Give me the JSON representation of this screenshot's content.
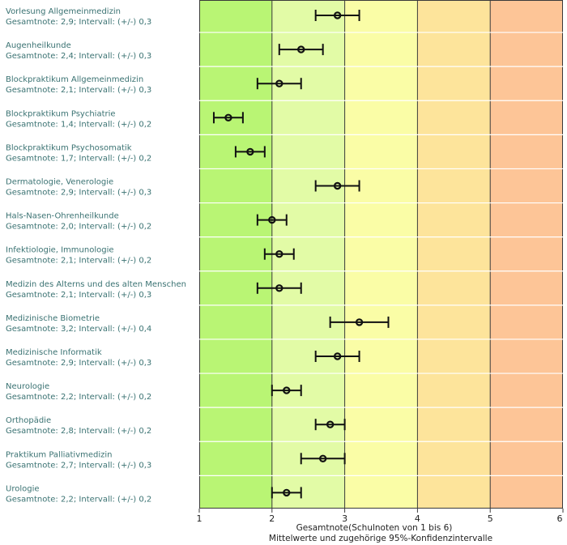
{
  "chart_data": {
    "type": "scatter",
    "orientation": "horizontal",
    "error_bars": true,
    "xlabel": "Gesamtnote(Schulnoten von 1 bis 6)",
    "xlabel2": "Mittelwerte und zugehörige 95%-Konfidenzintervalle",
    "xlim": [
      1,
      6
    ],
    "xticks": [
      "1",
      "2",
      "3",
      "4",
      "5",
      "6"
    ],
    "bands": [
      {
        "from": 1,
        "to": 2,
        "color": "#b9f574"
      },
      {
        "from": 2,
        "to": 3,
        "color": "#e2fba6"
      },
      {
        "from": 3,
        "to": 4,
        "color": "#fafda6"
      },
      {
        "from": 4,
        "to": 5,
        "color": "#fde49b"
      },
      {
        "from": 5,
        "to": 6,
        "color": "#fdc597"
      }
    ],
    "items": [
      {
        "name": "Vorlesung Allgemeinmedizin",
        "stat": "Gesamtnote: 2,9;  Intervall: (+/-) 0,3",
        "mean": 2.9,
        "ci": 0.3
      },
      {
        "name": "Augenheilkunde",
        "stat": "Gesamtnote: 2,4;  Intervall: (+/-) 0,3",
        "mean": 2.4,
        "ci": 0.3
      },
      {
        "name": "Blockpraktikum Allgemeinmedizin",
        "stat": "Gesamtnote: 2,1;  Intervall: (+/-) 0,3",
        "mean": 2.1,
        "ci": 0.3
      },
      {
        "name": "Blockpraktikum Psychiatrie",
        "stat": "Gesamtnote: 1,4;  Intervall: (+/-) 0,2",
        "mean": 1.4,
        "ci": 0.2
      },
      {
        "name": "Blockpraktikum Psychosomatik",
        "stat": "Gesamtnote: 1,7;  Intervall: (+/-) 0,2",
        "mean": 1.7,
        "ci": 0.2
      },
      {
        "name": "Dermatologie, Venerologie",
        "stat": "Gesamtnote: 2,9;  Intervall: (+/-) 0,3",
        "mean": 2.9,
        "ci": 0.3
      },
      {
        "name": "Hals-Nasen-Ohrenheilkunde",
        "stat": "Gesamtnote: 2,0;  Intervall: (+/-) 0,2",
        "mean": 2.0,
        "ci": 0.2
      },
      {
        "name": "Infektiologie, Immunologie",
        "stat": "Gesamtnote: 2,1;  Intervall: (+/-) 0,2",
        "mean": 2.1,
        "ci": 0.2
      },
      {
        "name": "Medizin des Alterns und des alten Menschen",
        "stat": "Gesamtnote: 2,1;  Intervall: (+/-) 0,3",
        "mean": 2.1,
        "ci": 0.3
      },
      {
        "name": "Medizinische Biometrie",
        "stat": "Gesamtnote: 3,2;  Intervall: (+/-) 0,4",
        "mean": 3.2,
        "ci": 0.4
      },
      {
        "name": "Medizinische Informatik",
        "stat": "Gesamtnote: 2,9;  Intervall: (+/-) 0,3",
        "mean": 2.9,
        "ci": 0.3
      },
      {
        "name": "Neurologie",
        "stat": "Gesamtnote: 2,2;  Intervall: (+/-) 0,2",
        "mean": 2.2,
        "ci": 0.2
      },
      {
        "name": "Orthopädie",
        "stat": "Gesamtnote: 2,8;  Intervall: (+/-) 0,2",
        "mean": 2.8,
        "ci": 0.2
      },
      {
        "name": "Praktikum Palliativmedizin",
        "stat": "Gesamtnote: 2,7;  Intervall: (+/-) 0,3",
        "mean": 2.7,
        "ci": 0.3
      },
      {
        "name": "Urologie",
        "stat": "Gesamtnote: 2,2;  Intervall: (+/-) 0,2",
        "mean": 2.2,
        "ci": 0.2
      }
    ]
  }
}
